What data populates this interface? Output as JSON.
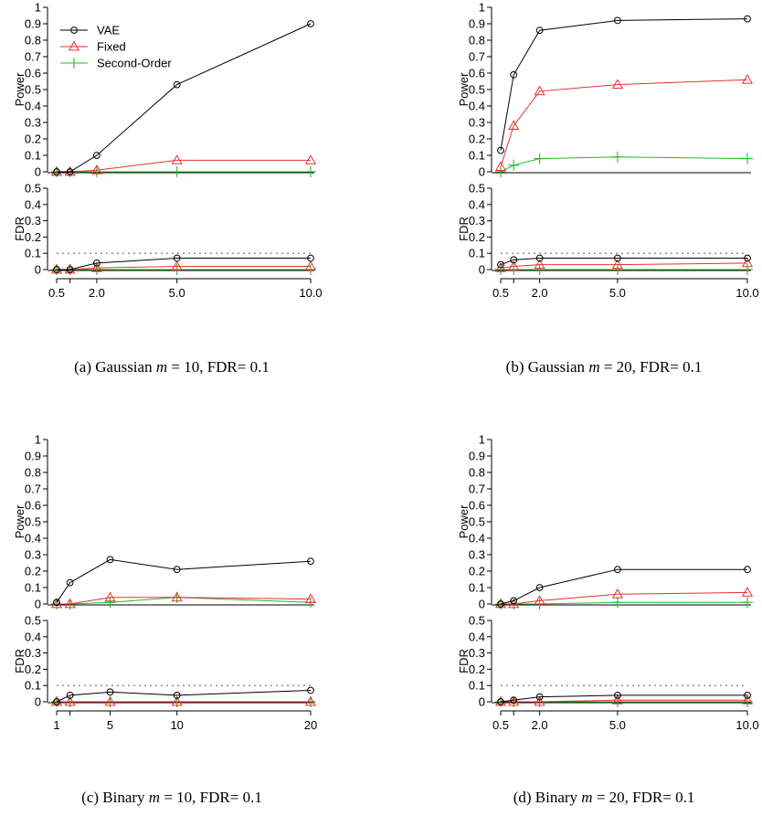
{
  "legend": {
    "entries": [
      {
        "name": "VAE",
        "color": "#000000",
        "marker": "circle"
      },
      {
        "name": "Fixed",
        "color": "#e83030",
        "marker": "triangle"
      },
      {
        "name": "Second-Order",
        "color": "#22bb22",
        "marker": "plus"
      }
    ],
    "placement": "top-left of panel (a)"
  },
  "captions": [
    {
      "pre": "(a) Gaussian ",
      "var": "m",
      "mid": " = 10, FDR= ",
      "val": "0.1"
    },
    {
      "pre": "(b) Gaussian ",
      "var": "m",
      "mid": " = 20, FDR= ",
      "val": "0.1"
    },
    {
      "pre": "(c) Binary ",
      "var": "m",
      "mid": " = 10, FDR= ",
      "val": "0.1"
    },
    {
      "pre": "(d) Binary ",
      "var": "m",
      "mid": " = 20, FDR= ",
      "val": "0.1"
    }
  ],
  "chart_data": [
    {
      "type": "line",
      "panel": "a",
      "x": [
        0.5,
        1.0,
        2.0,
        5.0,
        10.0
      ],
      "xticks": [
        "0.5",
        "",
        "2.0",
        "5.0",
        "10.0"
      ],
      "xlim": [
        0.5,
        10.0
      ],
      "power": {
        "ylabel": "Power",
        "ylim": [
          0,
          1
        ],
        "yticks": [
          "0",
          "0.1",
          "0.2",
          "0.3",
          "0.4",
          "0.5",
          "0.6",
          "0.7",
          "0.8",
          "0.9",
          "1"
        ],
        "series": [
          {
            "name": "VAE",
            "values": [
              0.0,
              0.0,
              0.1,
              0.53,
              0.9
            ]
          },
          {
            "name": "Fixed",
            "values": [
              0.0,
              0.0,
              0.01,
              0.07,
              0.07
            ]
          },
          {
            "name": "Second-Order",
            "values": [
              0.0,
              0.0,
              0.0,
              0.0,
              0.0
            ]
          }
        ]
      },
      "fdr": {
        "ylabel": "FDR",
        "ylim": [
          0,
          0.5
        ],
        "yticks": [
          "0",
          "0.1",
          "0.2",
          "0.3",
          "0.4",
          "0.5"
        ],
        "target": 0.1,
        "series": [
          {
            "name": "VAE",
            "values": [
              0.0,
              0.0,
              0.04,
              0.07,
              0.07
            ]
          },
          {
            "name": "Fixed",
            "values": [
              0.0,
              0.0,
              0.01,
              0.02,
              0.02
            ]
          },
          {
            "name": "Second-Order",
            "values": [
              0.0,
              0.0,
              0.0,
              0.0,
              0.0
            ]
          }
        ]
      }
    },
    {
      "type": "line",
      "panel": "b",
      "x": [
        0.5,
        1.0,
        2.0,
        5.0,
        10.0
      ],
      "xticks": [
        "0.5",
        "",
        "2.0",
        "5.0",
        "10.0"
      ],
      "xlim": [
        0.5,
        10.0
      ],
      "power": {
        "ylabel": "Power",
        "ylim": [
          0,
          1
        ],
        "yticks": [
          "0",
          "0.1",
          "0.2",
          "0.3",
          "0.4",
          "0.5",
          "0.6",
          "0.7",
          "0.8",
          "0.9",
          "1"
        ],
        "series": [
          {
            "name": "VAE",
            "values": [
              0.13,
              0.59,
              0.86,
              0.92,
              0.93
            ]
          },
          {
            "name": "Fixed",
            "values": [
              0.03,
              0.28,
              0.49,
              0.53,
              0.56
            ]
          },
          {
            "name": "Second-Order",
            "values": [
              0.0,
              0.04,
              0.08,
              0.09,
              0.08
            ]
          }
        ]
      },
      "fdr": {
        "ylabel": "FDR",
        "ylim": [
          0,
          0.5
        ],
        "yticks": [
          "0",
          "0.1",
          "0.2",
          "0.3",
          "0.4",
          "0.5"
        ],
        "target": 0.1,
        "series": [
          {
            "name": "VAE",
            "values": [
              0.03,
              0.06,
              0.07,
              0.07,
              0.07
            ]
          },
          {
            "name": "Fixed",
            "values": [
              0.01,
              0.02,
              0.03,
              0.03,
              0.04
            ]
          },
          {
            "name": "Second-Order",
            "values": [
              0.0,
              0.0,
              0.0,
              0.0,
              0.0
            ]
          }
        ]
      }
    },
    {
      "type": "line",
      "panel": "c",
      "x": [
        1,
        2,
        5,
        10,
        20
      ],
      "xticks": [
        "1",
        "",
        "5",
        "10",
        "20"
      ],
      "xlim": [
        1,
        20
      ],
      "power": {
        "ylabel": "Power",
        "ylim": [
          0,
          1
        ],
        "yticks": [
          "0",
          "0.1",
          "0.2",
          "0.3",
          "0.4",
          "0.5",
          "0.6",
          "0.7",
          "0.8",
          "0.9",
          "1"
        ],
        "series": [
          {
            "name": "VAE",
            "values": [
              0.01,
              0.13,
              0.27,
              0.21,
              0.26
            ]
          },
          {
            "name": "Fixed",
            "values": [
              0.0,
              0.0,
              0.04,
              0.04,
              0.03
            ]
          },
          {
            "name": "Second-Order",
            "values": [
              0.0,
              0.0,
              0.01,
              0.04,
              0.01
            ]
          }
        ]
      },
      "fdr": {
        "ylabel": "FDR",
        "ylim": [
          0,
          0.5
        ],
        "yticks": [
          "0",
          "0.1",
          "0.2",
          "0.3",
          "0.4",
          "0.5"
        ],
        "target": 0.1,
        "series": [
          {
            "name": "VAE",
            "values": [
              0.0,
              0.04,
              0.06,
              0.04,
              0.07
            ]
          },
          {
            "name": "Fixed",
            "values": [
              0.0,
              0.0,
              0.0,
              0.0,
              0.0
            ]
          },
          {
            "name": "Second-Order",
            "values": [
              0.0,
              0.0,
              0.0,
              0.0,
              0.0
            ]
          }
        ]
      }
    },
    {
      "type": "line",
      "panel": "d",
      "x": [
        0.5,
        1.0,
        2.0,
        5.0,
        10.0
      ],
      "xticks": [
        "0.5",
        "",
        "2.0",
        "5.0",
        "10.0"
      ],
      "xlim": [
        0.5,
        10.0
      ],
      "power": {
        "ylabel": "Power",
        "ylim": [
          0,
          1
        ],
        "yticks": [
          "0",
          "0.1",
          "0.2",
          "0.3",
          "0.4",
          "0.5",
          "0.6",
          "0.7",
          "0.8",
          "0.9",
          "1"
        ],
        "series": [
          {
            "name": "VAE",
            "values": [
              0.0,
              0.02,
              0.1,
              0.21,
              0.21
            ]
          },
          {
            "name": "Fixed",
            "values": [
              0.0,
              0.0,
              0.02,
              0.06,
              0.07
            ]
          },
          {
            "name": "Second-Order",
            "values": [
              0.0,
              0.0,
              0.0,
              0.01,
              0.01
            ]
          }
        ]
      },
      "fdr": {
        "ylabel": "FDR",
        "ylim": [
          0,
          0.5
        ],
        "yticks": [
          "0",
          "0.1",
          "0.2",
          "0.3",
          "0.4",
          "0.5"
        ],
        "target": 0.1,
        "series": [
          {
            "name": "VAE",
            "values": [
              0.0,
              0.01,
              0.03,
              0.04,
              0.04
            ]
          },
          {
            "name": "Fixed",
            "values": [
              0.0,
              0.0,
              0.0,
              0.01,
              0.01
            ]
          },
          {
            "name": "Second-Order",
            "values": [
              0.0,
              0.0,
              0.0,
              0.0,
              0.0
            ]
          }
        ]
      }
    }
  ]
}
